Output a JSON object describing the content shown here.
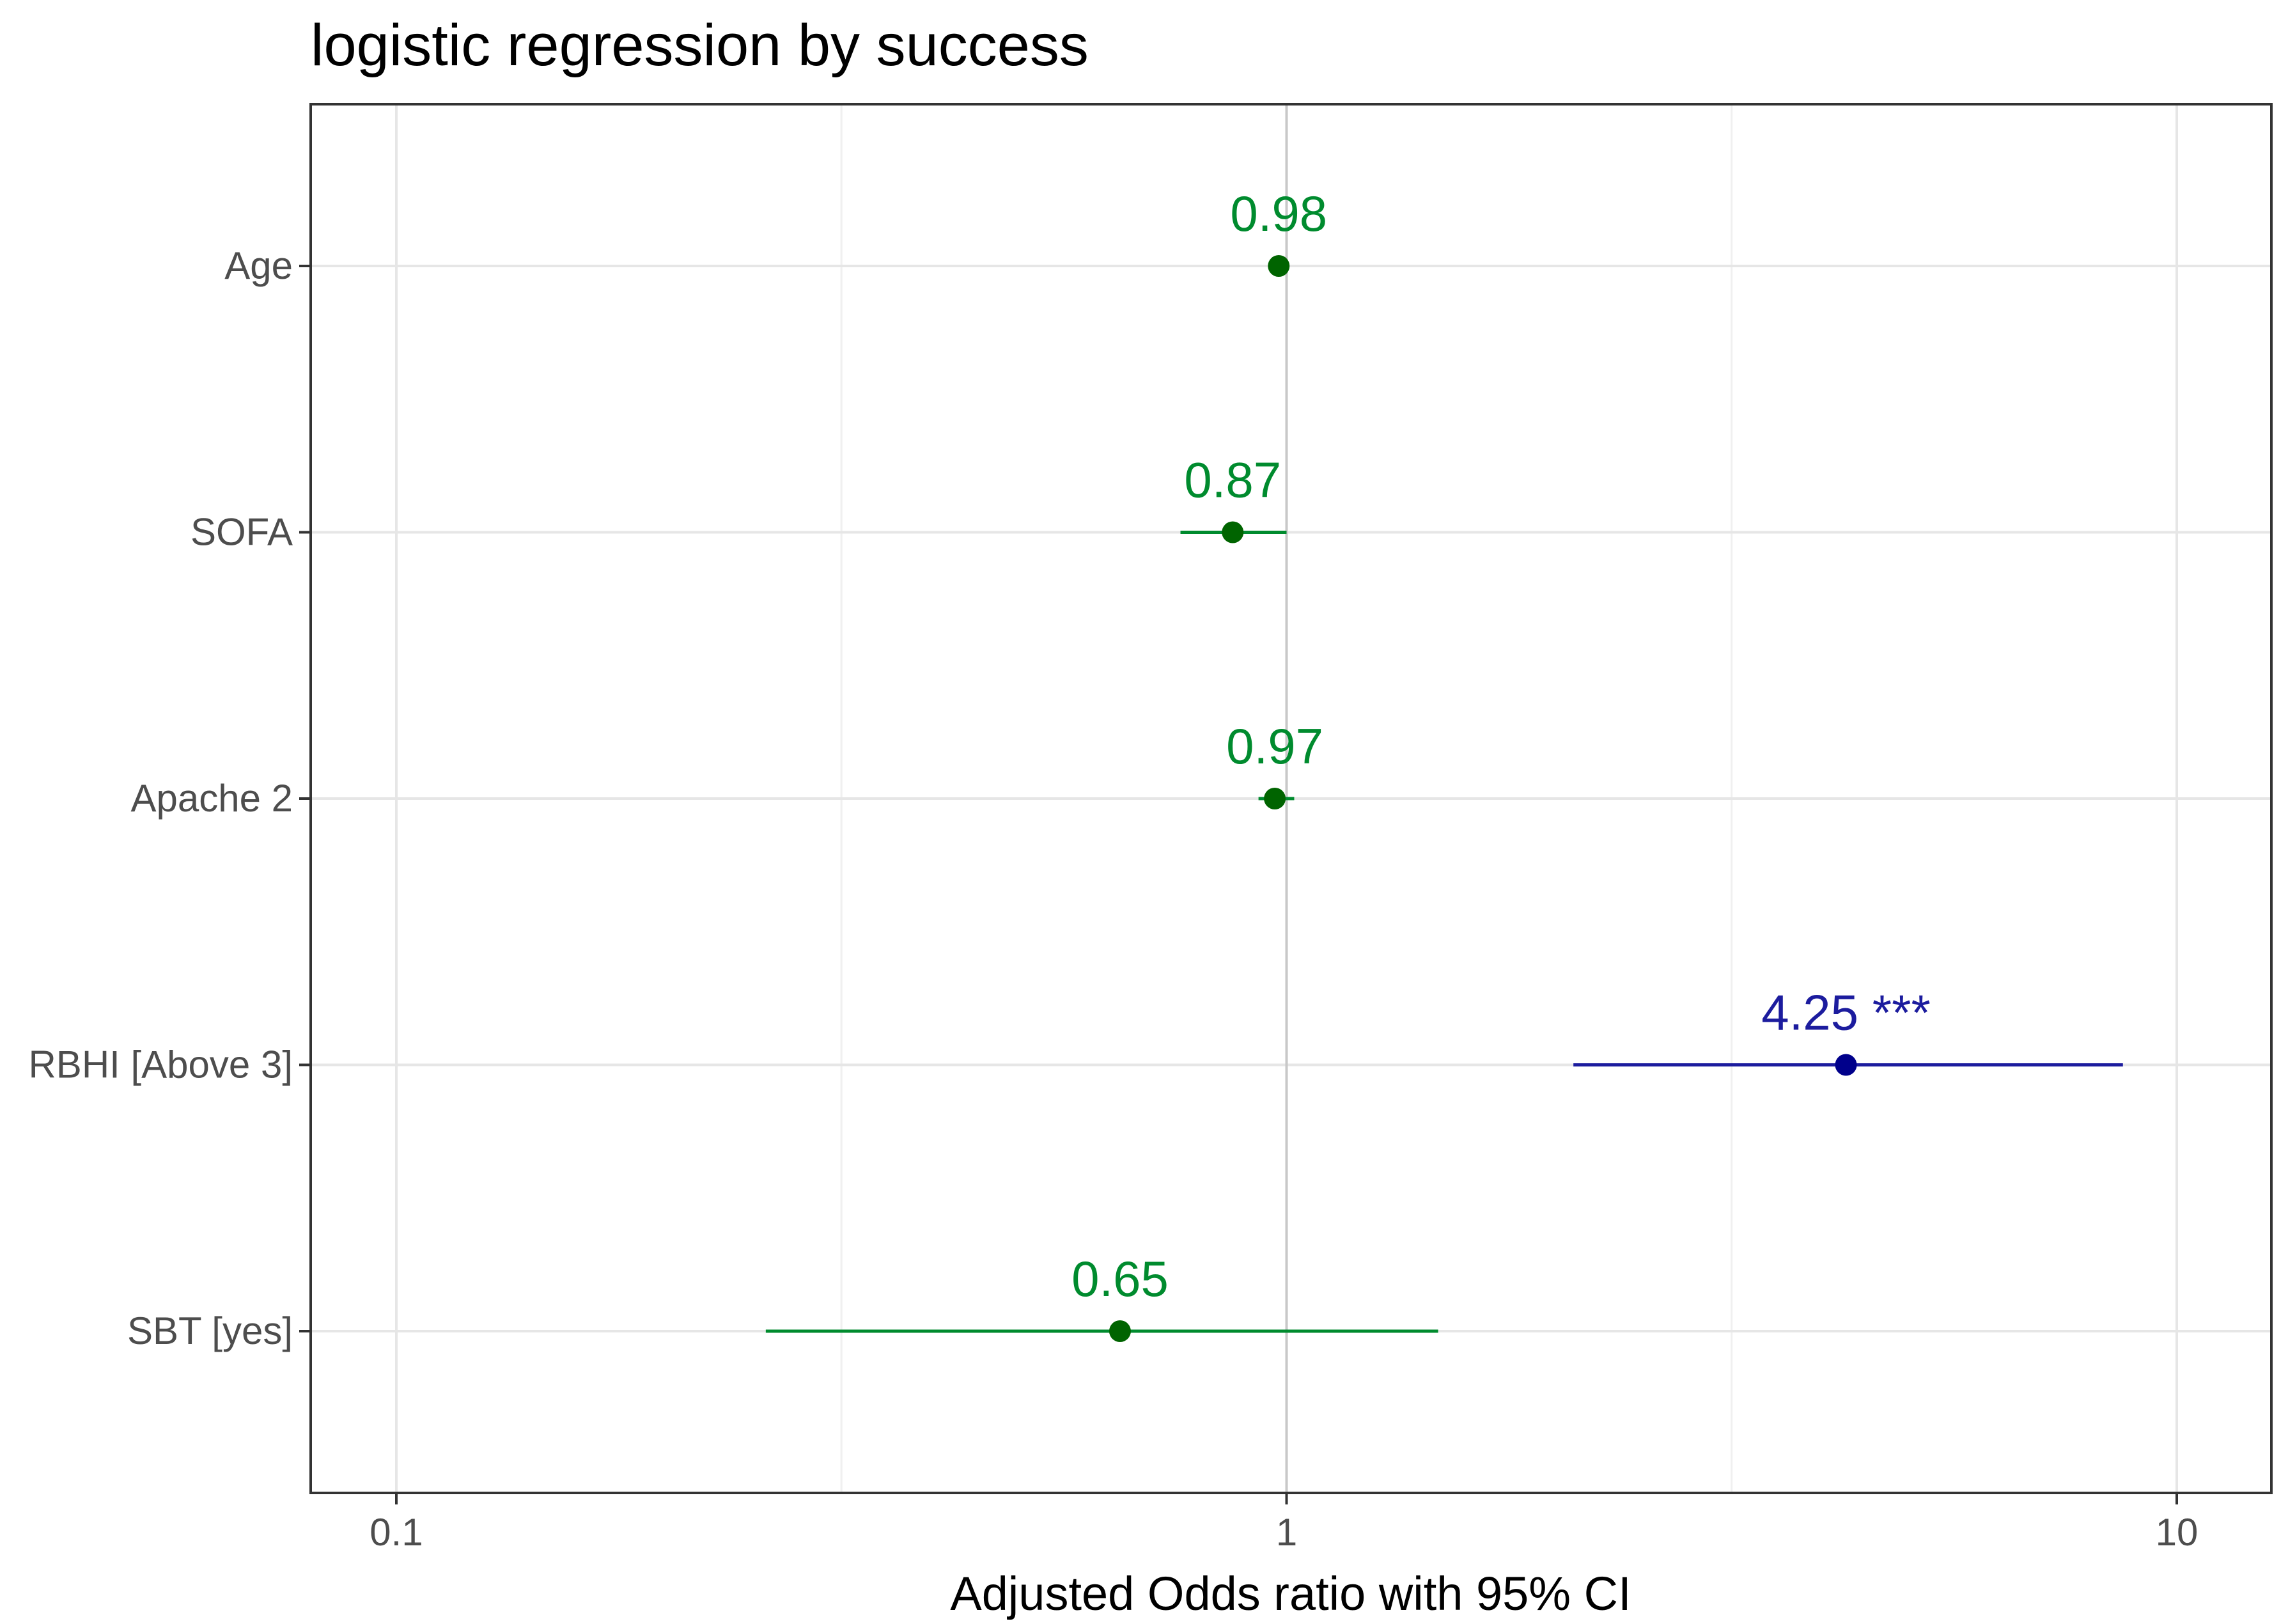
{
  "chart_data": {
    "type": "forest",
    "title": "logistic regression by success",
    "xlabel": "Adjusted Odds ratio with 95% CI",
    "ylabel": "",
    "x_scale": "log10",
    "xlim": [
      0.08,
      12
    ],
    "x_ticks": [
      {
        "value": 0.1,
        "label": "0.1"
      },
      {
        "value": 1,
        "label": "1"
      },
      {
        "value": 10,
        "label": "10"
      }
    ],
    "minor_ticks": [
      0.3162,
      3.162
    ],
    "reference_line": 1,
    "grid": true,
    "colors": {
      "non_significant": "#008b2e",
      "significant": "#1c1c9e",
      "point_nonsig": "#006400",
      "point_sig": "#00008b"
    },
    "terms": [
      {
        "name": "Age",
        "or": 0.98,
        "ci_low": 0.965,
        "ci_high": 0.995,
        "label": "0.98",
        "significant": false
      },
      {
        "name": "SOFA",
        "or": 0.87,
        "ci_low": 0.76,
        "ci_high": 1.0,
        "label": "0.87",
        "significant": false
      },
      {
        "name": "Apache 2",
        "or": 0.97,
        "ci_low": 0.93,
        "ci_high": 1.02,
        "label": "0.97",
        "significant": false
      },
      {
        "name": "RBHI [Above 3]",
        "or": 4.25,
        "ci_low": 2.1,
        "ci_high": 8.7,
        "label": "4.25 ***",
        "significant": true
      },
      {
        "name": "SBT [yes]",
        "or": 0.65,
        "ci_low": 0.26,
        "ci_high": 1.48,
        "label": "0.65",
        "significant": false
      }
    ]
  }
}
